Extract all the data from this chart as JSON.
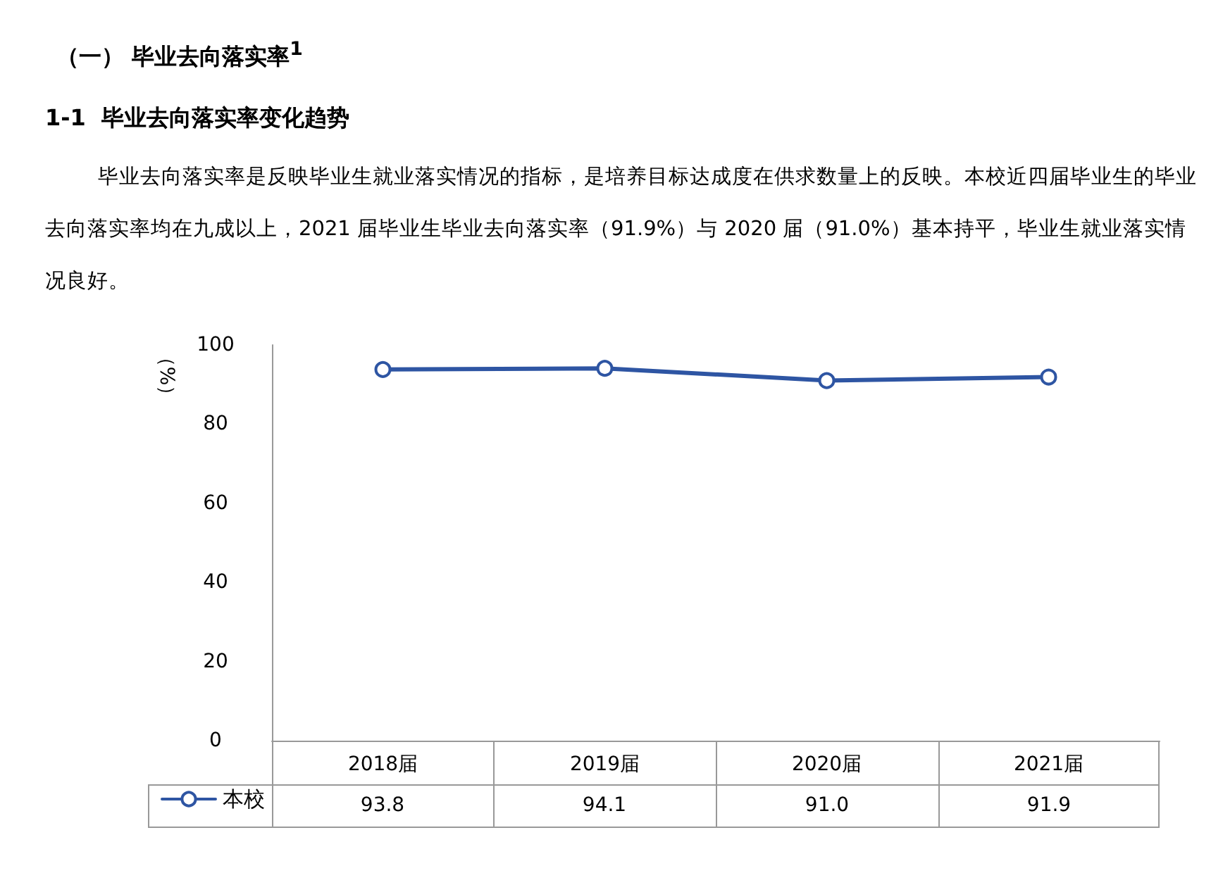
{
  "chart_data": {
    "type": "line",
    "title": "（一）  毕业去向落实率$^{1}$",
    "subtitle": "1-1  毕业去向落实率变化趋势",
    "annotations": [
      "毕业去向落实率是反映毕业生就业落实情况的指标，是培养目标达成度在供求数量上的反映。本校近四届毕业生的毕业去向落实率均在九成以上，2021 届毕业生毕业去向落实率（91.9%）与 2020 届（91.0%）基本持平，毕业生就业落实情况良好。"
    ],
    "ylabel": "（%）",
    "categories": [
      "2018届",
      "2019届",
      "2020届",
      "2021届"
    ],
    "series": [
      {
        "name": "本校",
        "color": "#2e55a3",
        "values": [
          93.8,
          94.1,
          91.0,
          91.9
        ],
        "value_labels": [
          "93.8",
          "94.1",
          "91.0",
          "91.9"
        ]
      }
    ],
    "ylim": [
      0,
      100
    ],
    "yticks": [
      0,
      20,
      40,
      60,
      80,
      100
    ],
    "grid": false,
    "legend": "bottom left",
    "marker": "circle",
    "line_style": "solid"
  }
}
